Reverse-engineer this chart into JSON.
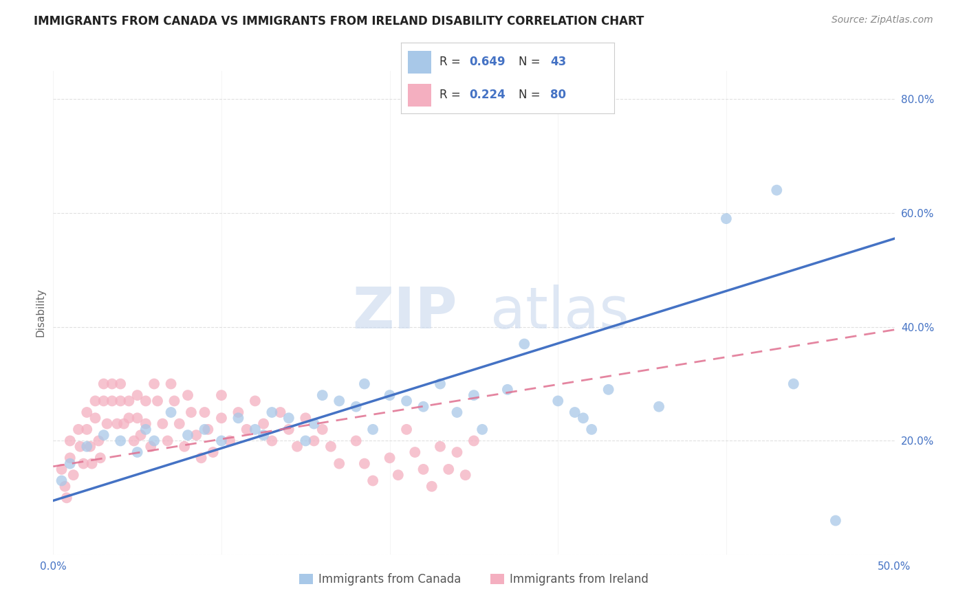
{
  "title": "IMMIGRANTS FROM CANADA VS IMMIGRANTS FROM IRELAND DISABILITY CORRELATION CHART",
  "source": "Source: ZipAtlas.com",
  "ylabel": "Disability",
  "xlim": [
    0.0,
    0.5
  ],
  "ylim": [
    0.0,
    0.85
  ],
  "xticks": [
    0.0,
    0.1,
    0.2,
    0.3,
    0.4,
    0.5
  ],
  "yticks": [
    0.0,
    0.2,
    0.4,
    0.6,
    0.8
  ],
  "xticklabels": [
    "0.0%",
    "",
    "",
    "",
    "",
    "50.0%"
  ],
  "yticklabels": [
    "",
    "20.0%",
    "40.0%",
    "60.0%",
    "80.0%"
  ],
  "canada_color": "#a8c8e8",
  "ireland_color": "#f4afc0",
  "canada_line_color": "#4472c4",
  "ireland_line_color": "#e07090",
  "R_canada": 0.649,
  "N_canada": 43,
  "R_ireland": 0.224,
  "N_ireland": 80,
  "legend_label_canada": "Immigrants from Canada",
  "legend_label_ireland": "Immigrants from Ireland",
  "canada_scatter_x": [
    0.005,
    0.01,
    0.02,
    0.03,
    0.04,
    0.05,
    0.055,
    0.06,
    0.07,
    0.08,
    0.09,
    0.1,
    0.11,
    0.12,
    0.125,
    0.13,
    0.14,
    0.15,
    0.155,
    0.16,
    0.17,
    0.18,
    0.185,
    0.19,
    0.2,
    0.21,
    0.22,
    0.23,
    0.24,
    0.25,
    0.255,
    0.27,
    0.28,
    0.3,
    0.31,
    0.315,
    0.32,
    0.33,
    0.36,
    0.4,
    0.43,
    0.44,
    0.465
  ],
  "canada_scatter_y": [
    0.13,
    0.16,
    0.19,
    0.21,
    0.2,
    0.18,
    0.22,
    0.2,
    0.25,
    0.21,
    0.22,
    0.2,
    0.24,
    0.22,
    0.21,
    0.25,
    0.24,
    0.2,
    0.23,
    0.28,
    0.27,
    0.26,
    0.3,
    0.22,
    0.28,
    0.27,
    0.26,
    0.3,
    0.25,
    0.28,
    0.22,
    0.29,
    0.37,
    0.27,
    0.25,
    0.24,
    0.22,
    0.29,
    0.26,
    0.59,
    0.64,
    0.3,
    0.06
  ],
  "ireland_scatter_x": [
    0.005,
    0.007,
    0.008,
    0.01,
    0.01,
    0.012,
    0.015,
    0.016,
    0.018,
    0.02,
    0.02,
    0.022,
    0.023,
    0.025,
    0.025,
    0.027,
    0.028,
    0.03,
    0.03,
    0.032,
    0.035,
    0.035,
    0.038,
    0.04,
    0.04,
    0.042,
    0.045,
    0.045,
    0.048,
    0.05,
    0.05,
    0.052,
    0.055,
    0.055,
    0.058,
    0.06,
    0.062,
    0.065,
    0.068,
    0.07,
    0.072,
    0.075,
    0.078,
    0.08,
    0.082,
    0.085,
    0.088,
    0.09,
    0.092,
    0.095,
    0.1,
    0.1,
    0.105,
    0.11,
    0.115,
    0.12,
    0.125,
    0.13,
    0.135,
    0.14,
    0.145,
    0.15,
    0.155,
    0.16,
    0.165,
    0.17,
    0.18,
    0.185,
    0.19,
    0.2,
    0.205,
    0.21,
    0.215,
    0.22,
    0.225,
    0.23,
    0.235,
    0.24,
    0.245,
    0.25
  ],
  "ireland_scatter_y": [
    0.15,
    0.12,
    0.1,
    0.2,
    0.17,
    0.14,
    0.22,
    0.19,
    0.16,
    0.25,
    0.22,
    0.19,
    0.16,
    0.27,
    0.24,
    0.2,
    0.17,
    0.3,
    0.27,
    0.23,
    0.3,
    0.27,
    0.23,
    0.3,
    0.27,
    0.23,
    0.27,
    0.24,
    0.2,
    0.28,
    0.24,
    0.21,
    0.27,
    0.23,
    0.19,
    0.3,
    0.27,
    0.23,
    0.2,
    0.3,
    0.27,
    0.23,
    0.19,
    0.28,
    0.25,
    0.21,
    0.17,
    0.25,
    0.22,
    0.18,
    0.28,
    0.24,
    0.2,
    0.25,
    0.22,
    0.27,
    0.23,
    0.2,
    0.25,
    0.22,
    0.19,
    0.24,
    0.2,
    0.22,
    0.19,
    0.16,
    0.2,
    0.16,
    0.13,
    0.17,
    0.14,
    0.22,
    0.18,
    0.15,
    0.12,
    0.19,
    0.15,
    0.18,
    0.14,
    0.2
  ],
  "watermark_zip": "ZIP",
  "watermark_atlas": "atlas",
  "background_color": "#ffffff",
  "grid_color": "#e0e0e0",
  "canada_trendline_x": [
    0.0,
    0.5
  ],
  "canada_trendline_y": [
    0.095,
    0.555
  ],
  "ireland_trendline_x": [
    0.0,
    0.5
  ],
  "ireland_trendline_y": [
    0.155,
    0.395
  ]
}
